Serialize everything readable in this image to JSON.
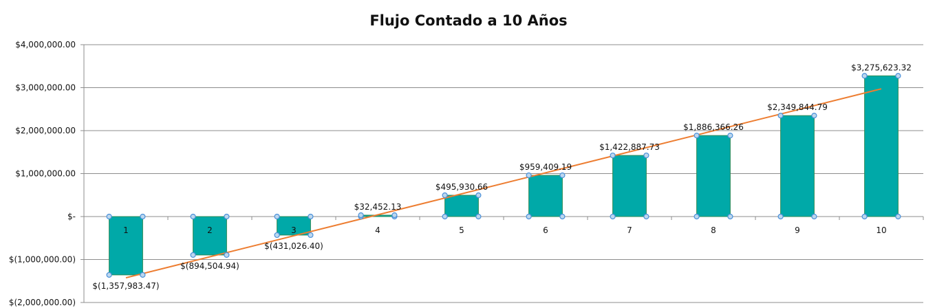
{
  "chart_data": {
    "type": "bar",
    "title": "Flujo Contado a 10 Años",
    "xlabel": "",
    "ylabel": "",
    "categories": [
      "1",
      "2",
      "3",
      "4",
      "5",
      "6",
      "7",
      "8",
      "9",
      "10"
    ],
    "values": [
      -1357983.47,
      -894504.94,
      -431026.4,
      32452.13,
      495930.66,
      959409.19,
      1422887.73,
      1886366.26,
      2349844.79,
      3275623.32
    ],
    "data_labels": [
      "$(1,357,983.47)",
      "$(894,504.94)",
      "$(431,026.40)",
      "$32,452.13",
      "$495,930.66",
      "$959,409.19",
      "$1,422,887.73",
      "$1,886,366.26",
      "$2,349,844.79",
      "$3,275,623.32"
    ],
    "ylim": [
      -2000000,
      4000000
    ],
    "yticks": [
      4000000,
      3000000,
      2000000,
      1000000,
      0,
      -1000000,
      -2000000
    ],
    "ytick_labels": [
      "$4,000,000.00",
      "$3,000,000.00",
      "$2,000,000.00",
      "$1,000,000.00",
      "$-",
      "$(1,000,000.00)",
      "$(2,000,000.00)"
    ],
    "grid": true,
    "trendline": true,
    "colors": {
      "bar_fill": "#00A9A8",
      "bar_stroke": "#2E8B57",
      "trendline": "#ED7D31",
      "handle_fill": "#BDD7EE",
      "handle_stroke": "#4A90D9",
      "grid": "#8C8C8C"
    }
  }
}
